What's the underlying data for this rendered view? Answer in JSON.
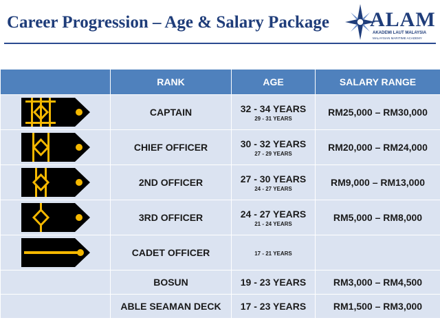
{
  "title": "Career Progression – Age & Salary Package",
  "logo": {
    "name": "ALAM",
    "line1": "AKADEMI LAUT MALAYSIA",
    "line2": "MALAYSIAN MARITIME ACADEMY"
  },
  "table": {
    "headers": [
      "",
      "RANK",
      "AGE",
      "SALARY RANGE"
    ],
    "rows": [
      {
        "rank": "CAPTAIN",
        "age": "32 - 34 YEARS",
        "age_sub": "29 - 31 YEARS",
        "salary": "RM25,000 – RM30,000",
        "insignia": "captain-insignia-icon"
      },
      {
        "rank": "CHIEF OFFICER",
        "age": "30 - 32 YEARS",
        "age_sub": "27 - 29 YEARS",
        "salary": "RM20,000 – RM24,000",
        "insignia": "chief-officer-insignia-icon"
      },
      {
        "rank": "2ND OFFICER",
        "age": "27 - 30 YEARS",
        "age_sub": "24 - 27 YEARS",
        "salary": "RM9,000 – RM13,000",
        "insignia": "second-officer-insignia-icon"
      },
      {
        "rank": "3RD OFFICER",
        "age": "24 - 27 YEARS",
        "age_sub": "21 - 24 YEARS",
        "salary": "RM5,000 – RM8,000",
        "insignia": "third-officer-insignia-icon"
      },
      {
        "rank": "CADET OFFICER",
        "age": "",
        "age_sub": "17 - 21 YEARS",
        "salary": "",
        "insignia": "cadet-officer-insignia-icon"
      },
      {
        "rank": "BOSUN",
        "age": "19 - 23 YEARS",
        "age_sub": "",
        "salary": "RM3,000 – RM4,500",
        "insignia": ""
      },
      {
        "rank": "ABLE SEAMAN DECK",
        "age": "17 - 23 YEARS",
        "age_sub": "",
        "salary": "RM1,500 – RM3,000",
        "insignia": ""
      }
    ]
  },
  "colors": {
    "header_bg": "#4f81bd",
    "cell_bg": "#dbe3f1",
    "title": "#1f3d7a",
    "epaulette": "#000000",
    "gold": "#f5b800"
  }
}
